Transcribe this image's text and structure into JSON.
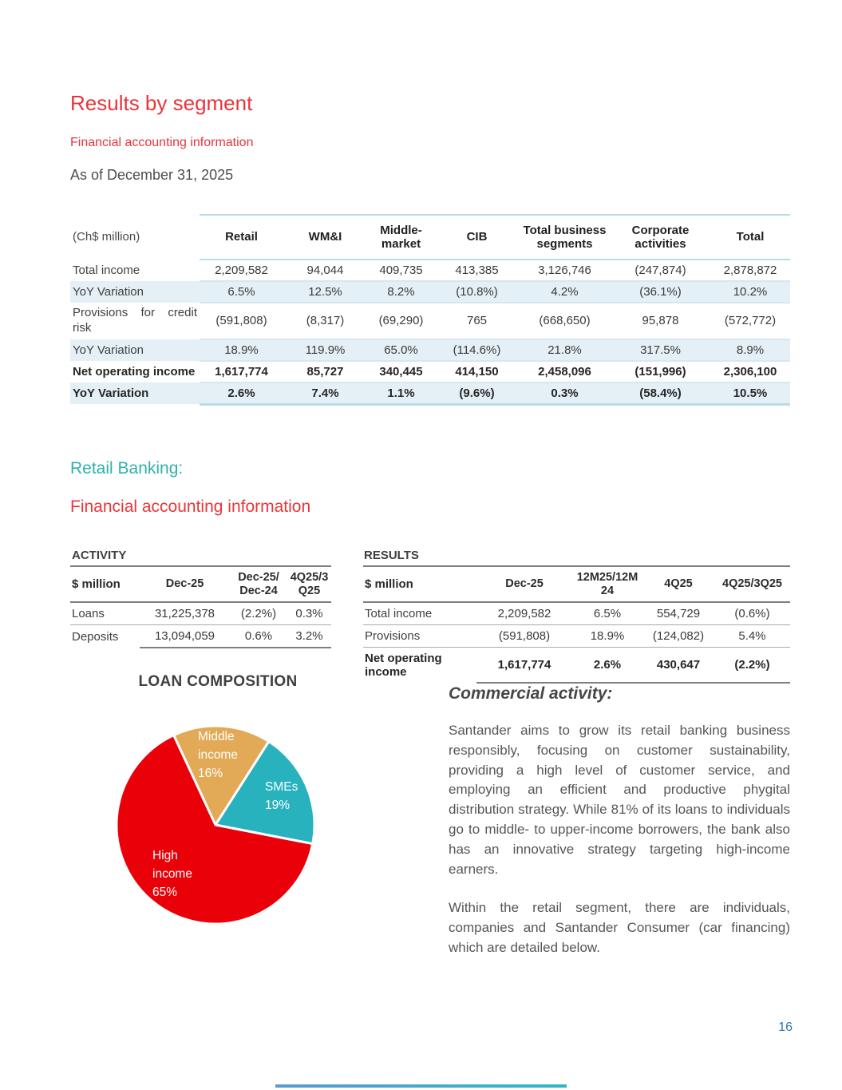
{
  "header": {
    "title": "Results by segment",
    "subtitle": "Financial accounting information",
    "as_of": "As of December 31, 2025"
  },
  "colors": {
    "santander_red": "#e8353a",
    "teal_heading": "#2fb1aa",
    "table_accent_teal": "#b9dbe8",
    "row_shade_blue": "#e4f0f6",
    "page_number_blue": "#2e74b5"
  },
  "segment_table": {
    "unit_label": "(Ch$ million)",
    "columns": [
      "Retail",
      "WM&I",
      "Middle-market",
      "CIB",
      "Total business segments",
      "Corporate activities",
      "Total"
    ],
    "rows": [
      {
        "label": "Total income",
        "values": [
          "2,209,582",
          "94,044",
          "409,735",
          "413,385",
          "3,126,746",
          "(247,874)",
          "2,878,872"
        ]
      },
      {
        "label": "YoY Variation",
        "values": [
          "6.5%",
          "12.5%",
          "8.2%",
          "(10.8%)",
          "4.2%",
          "(36.1%)",
          "10.2%"
        ]
      },
      {
        "label": "Provisions for credit risk",
        "values": [
          "(591,808)",
          "(8,317)",
          "(69,290)",
          "765",
          "(668,650)",
          "95,878",
          "(572,772)"
        ]
      },
      {
        "label": "YoY Variation",
        "values": [
          "18.9%",
          "119.9%",
          "65.0%",
          "(114.6%)",
          "21.8%",
          "317.5%",
          "8.9%"
        ]
      },
      {
        "label": "Net operating income",
        "values": [
          "1,617,774",
          "85,727",
          "340,445",
          "414,150",
          "2,458,096",
          "(151,996)",
          "2,306,100"
        ]
      },
      {
        "label": "YoY Variation",
        "values": [
          "2.6%",
          "7.4%",
          "1.1%",
          "(9.6%)",
          "0.3%",
          "(58.4%)",
          "10.5%"
        ]
      }
    ]
  },
  "retail": {
    "heading": "Retail Banking:",
    "subheading": "Financial accounting information"
  },
  "activity": {
    "heading": "ACTIVITY",
    "columns": [
      "$ million",
      "Dec-25",
      "Dec-25/ Dec-24",
      "4Q25/3 Q25"
    ],
    "rows": [
      {
        "label": "Loans",
        "values": [
          "31,225,378",
          "(2.2%)",
          "0.3%"
        ]
      },
      {
        "label": "Deposits",
        "values": [
          "13,094,059",
          "0.6%",
          "3.2%"
        ]
      }
    ]
  },
  "results": {
    "heading": "RESULTS",
    "columns": [
      "$ million",
      "Dec-25",
      "12M25/12M 24",
      "4Q25",
      "4Q25/3Q25"
    ],
    "rows": [
      {
        "label": "Total income",
        "values": [
          "2,209,582",
          "6.5%",
          "554,729",
          "(0.6%)"
        ]
      },
      {
        "label": "Provisions",
        "values": [
          "(591,808)",
          "18.9%",
          "(124,082)",
          "5.4%"
        ]
      },
      {
        "label": "Net operating income",
        "values": [
          "1,617,774",
          "2.6%",
          "430,647",
          "(2.2%)"
        ]
      }
    ]
  },
  "chart_data": {
    "type": "pie",
    "title": "LOAN COMPOSITION",
    "start_angle_deg": -25,
    "slices": [
      {
        "label": "Middle income",
        "pct": 16,
        "color": "#e2a957"
      },
      {
        "label": "SMEs",
        "pct": 19,
        "color": "#27b2be"
      },
      {
        "label": "High income",
        "pct": 65,
        "color": "#e90008"
      }
    ]
  },
  "commercial": {
    "heading": "Commercial activity:",
    "paragraphs": [
      "Santander aims to grow its retail banking business responsibly, focusing on customer sustainability, providing a high level of customer service, and employing an efficient and productive phygital distribution strategy. While 81% of its loans to individuals go to middle- to upper-income borrowers, the bank also has an innovative strategy targeting high-income earners.",
      "Within the retail segment, there are individuals, companies and Santander Consumer (car financing) which are detailed below."
    ]
  },
  "page": {
    "number": "16"
  }
}
